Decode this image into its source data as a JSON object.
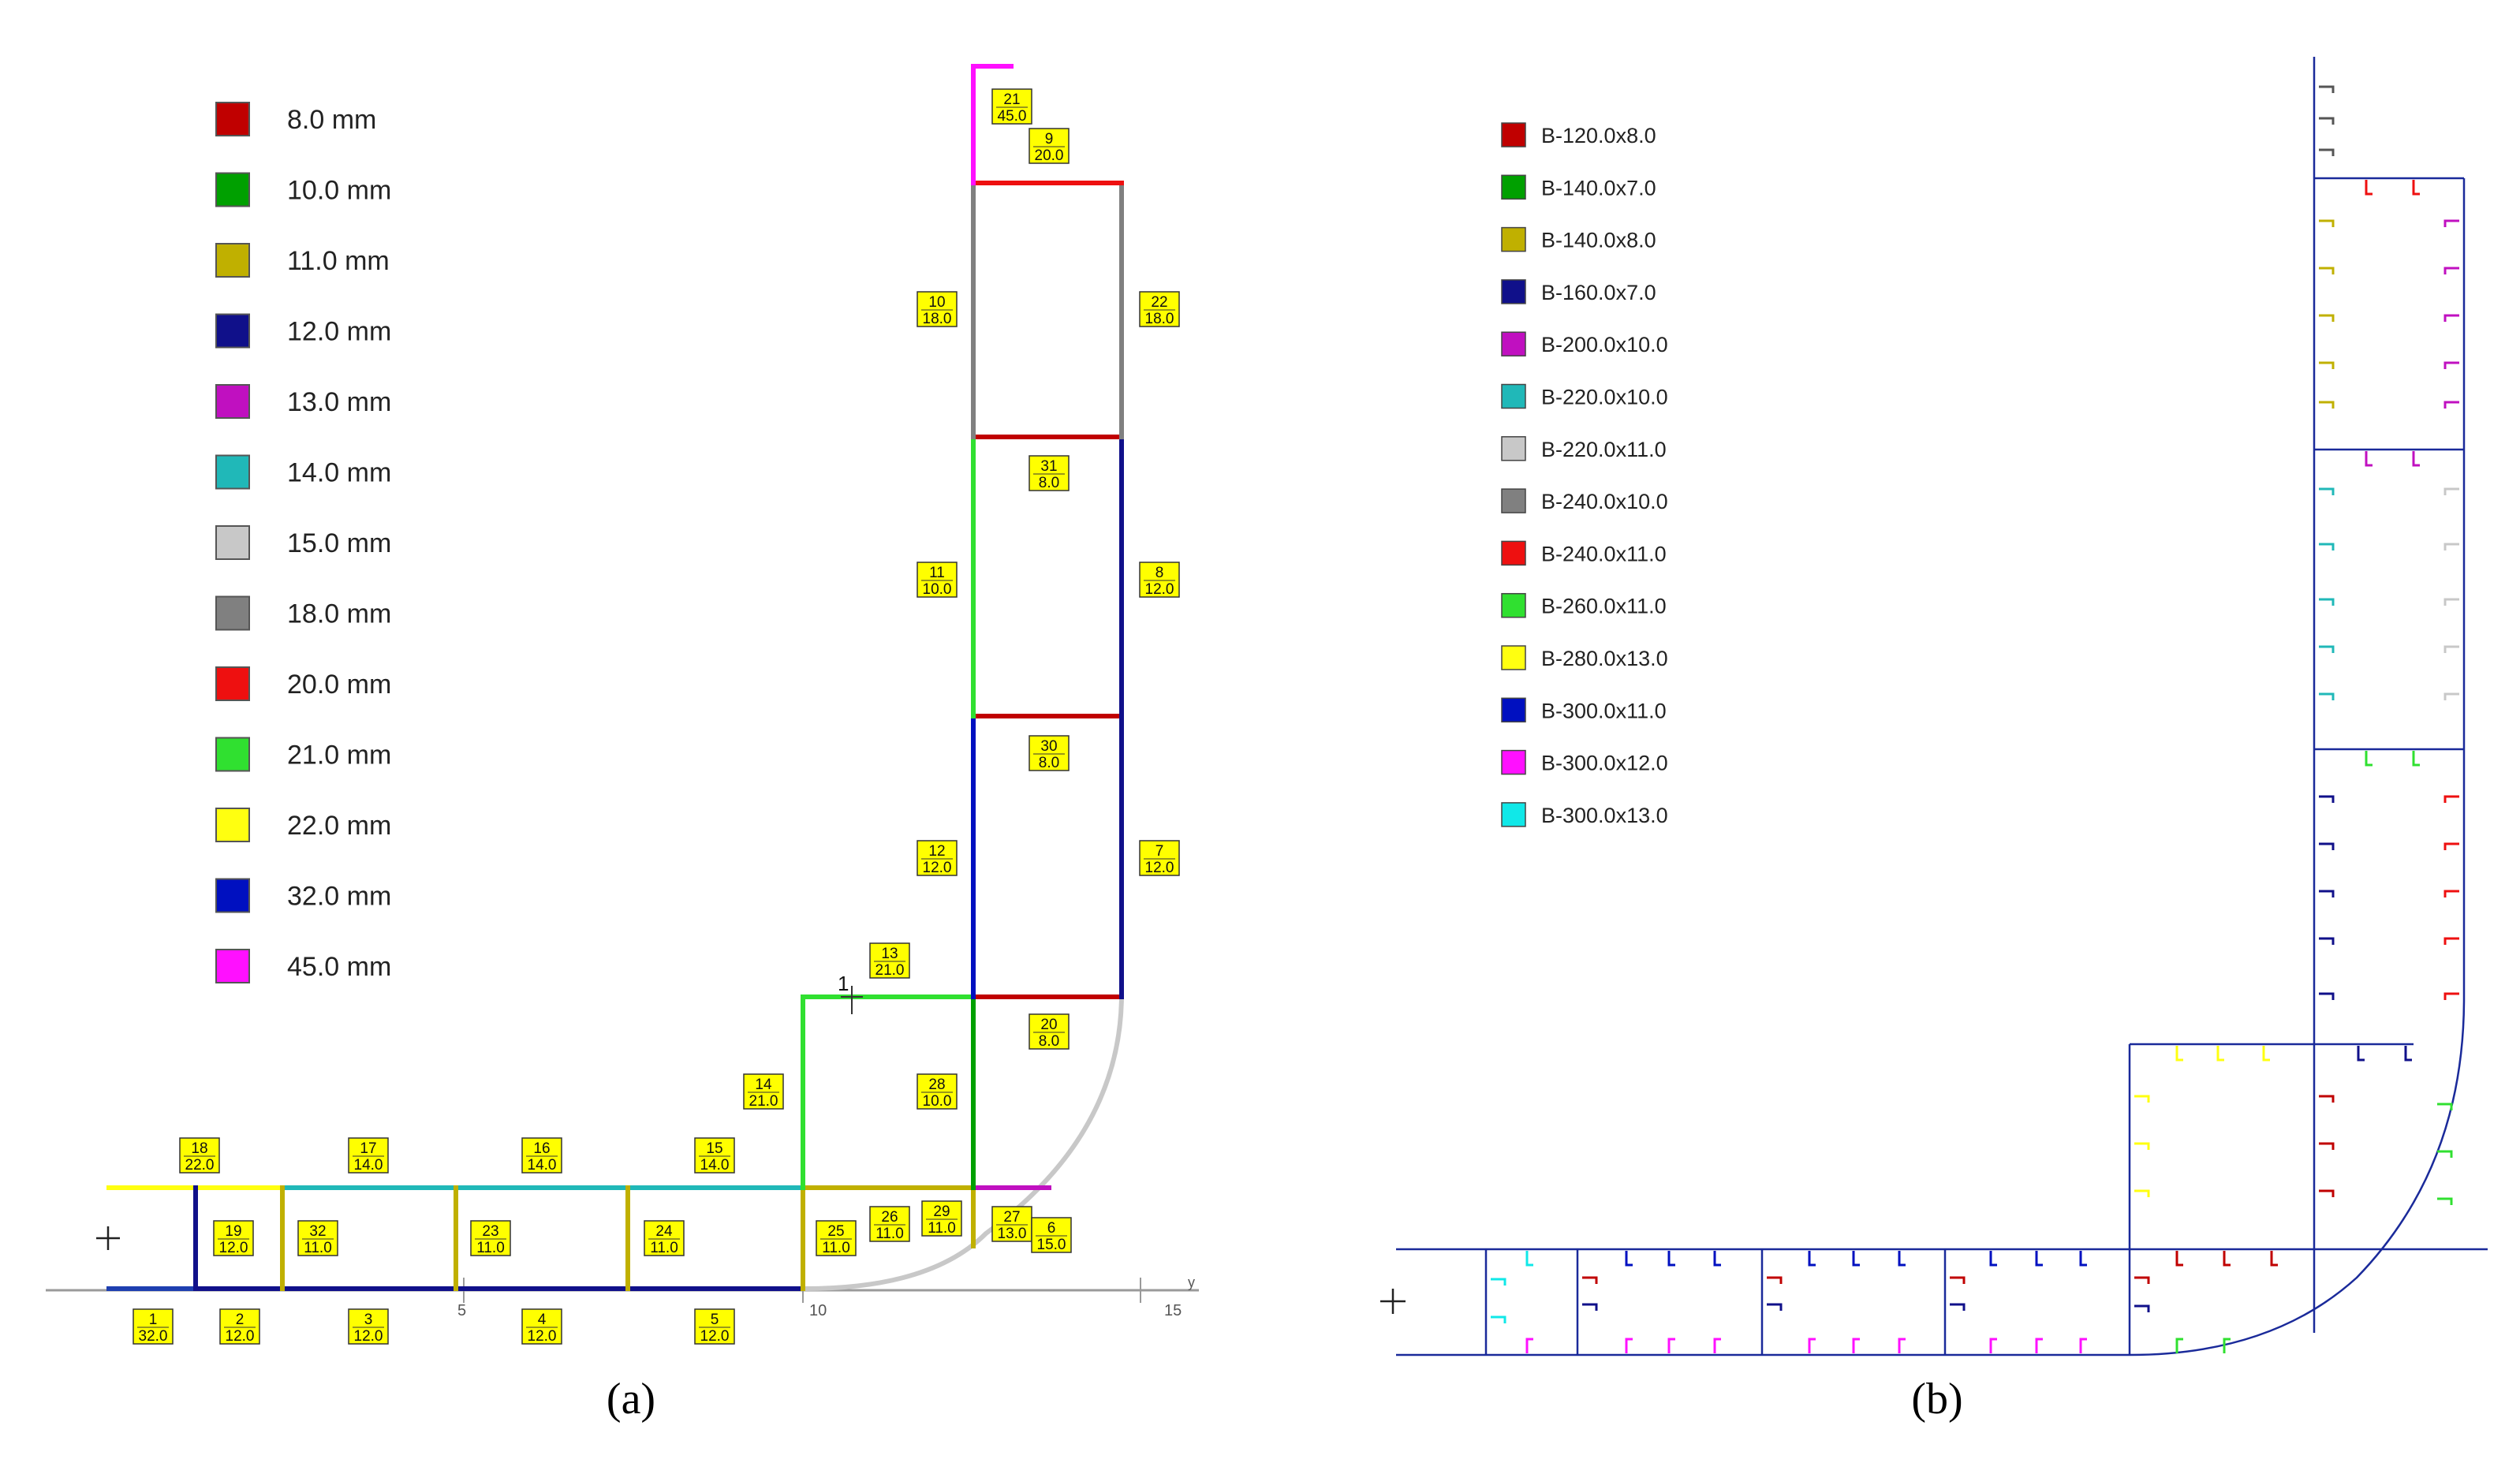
{
  "panel_a": {
    "caption": "(a)",
    "legend": [
      {
        "label": "8.0 mm",
        "color": "#c00000"
      },
      {
        "label": "10.0 mm",
        "color": "#00a000"
      },
      {
        "label": "11.0 mm",
        "color": "#c0b000"
      },
      {
        "label": "12.0 mm",
        "color": "#10108a"
      },
      {
        "label": "13.0 mm",
        "color": "#c010c0"
      },
      {
        "label": "14.0 mm",
        "color": "#20b8b8"
      },
      {
        "label": "15.0 mm",
        "color": "#c8c8c8"
      },
      {
        "label": "18.0 mm",
        "color": "#808080"
      },
      {
        "label": "20.0 mm",
        "color": "#ee1010"
      },
      {
        "label": "21.0 mm",
        "color": "#30e030"
      },
      {
        "label": "22.0 mm",
        "color": "#ffff10"
      },
      {
        "label": "32.0 mm",
        "color": "#0010c0"
      },
      {
        "label": "45.0 mm",
        "color": "#ff10ff"
      }
    ],
    "element_labels": [
      {
        "id": "21",
        "value": "45.0"
      },
      {
        "id": "9",
        "value": "20.0"
      },
      {
        "id": "10",
        "value": "18.0"
      },
      {
        "id": "22",
        "value": "18.0"
      },
      {
        "id": "31",
        "value": "8.0"
      },
      {
        "id": "11",
        "value": "10.0"
      },
      {
        "id": "8",
        "value": "12.0"
      },
      {
        "id": "30",
        "value": "8.0"
      },
      {
        "id": "12",
        "value": "12.0"
      },
      {
        "id": "7",
        "value": "12.0"
      },
      {
        "id": "13",
        "value": "21.0"
      },
      {
        "id": "20",
        "value": "8.0"
      },
      {
        "id": "14",
        "value": "21.0"
      },
      {
        "id": "28",
        "value": "10.0"
      },
      {
        "id": "18",
        "value": "22.0"
      },
      {
        "id": "17",
        "value": "14.0"
      },
      {
        "id": "16",
        "value": "14.0"
      },
      {
        "id": "15",
        "value": "14.0"
      },
      {
        "id": "19",
        "value": "12.0"
      },
      {
        "id": "32",
        "value": "11.0"
      },
      {
        "id": "23",
        "value": "11.0"
      },
      {
        "id": "24",
        "value": "11.0"
      },
      {
        "id": "25",
        "value": "11.0"
      },
      {
        "id": "26",
        "value": "11.0"
      },
      {
        "id": "29",
        "value": "11.0"
      },
      {
        "id": "27",
        "value": "13.0"
      },
      {
        "id": "6",
        "value": "15.0"
      },
      {
        "id": "1",
        "value": "32.0"
      },
      {
        "id": "2",
        "value": "12.0"
      },
      {
        "id": "3",
        "value": "12.0"
      },
      {
        "id": "4",
        "value": "12.0"
      },
      {
        "id": "5",
        "value": "12.0"
      }
    ],
    "axis_ticks": [
      "5",
      "10",
      "15"
    ],
    "axis_label": "y",
    "node_label": "1"
  },
  "panel_b": {
    "caption": "(b)",
    "legend": [
      {
        "label": "B-120.0x8.0",
        "color": "#c00000"
      },
      {
        "label": "B-140.0x7.0",
        "color": "#00a000"
      },
      {
        "label": "B-140.0x8.0",
        "color": "#c0b000"
      },
      {
        "label": "B-160.0x7.0",
        "color": "#10108a"
      },
      {
        "label": "B-200.0x10.0",
        "color": "#c010c0"
      },
      {
        "label": "B-220.0x10.0",
        "color": "#20b8b8"
      },
      {
        "label": "B-220.0x11.0",
        "color": "#c8c8c8"
      },
      {
        "label": "B-240.0x10.0",
        "color": "#808080"
      },
      {
        "label": "B-240.0x11.0",
        "color": "#ee1010"
      },
      {
        "label": "B-260.0x11.0",
        "color": "#30e030"
      },
      {
        "label": "B-280.0x13.0",
        "color": "#ffff10"
      },
      {
        "label": "B-300.0x11.0",
        "color": "#0010c0"
      },
      {
        "label": "B-300.0x12.0",
        "color": "#ff10ff"
      },
      {
        "label": "B-300.0x13.0",
        "color": "#10e8e8"
      }
    ]
  }
}
